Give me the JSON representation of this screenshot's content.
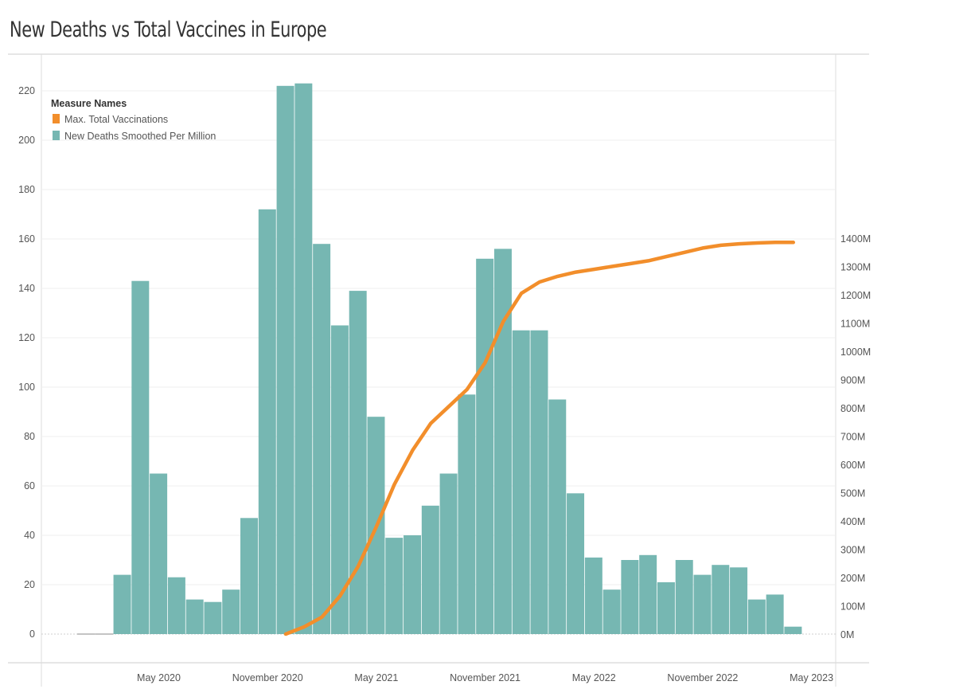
{
  "title": "New Deaths vs Total Vaccines in Europe",
  "chart_data": {
    "type": "bar",
    "legend": {
      "title": "Measure Names",
      "placement": "top-left",
      "entries": [
        {
          "label": "Max. Total Vaccinations",
          "color": "#f28e2b"
        },
        {
          "label": "New Deaths Smoothed Per Million",
          "color": "#76b7b2"
        }
      ]
    },
    "x_ticks": [
      "May 2020",
      "November 2020",
      "May 2021",
      "November 2021",
      "May 2022",
      "November 2022",
      "May 2023"
    ],
    "categories": [
      "2020-01",
      "2020-02",
      "2020-03",
      "2020-04",
      "2020-05",
      "2020-06",
      "2020-07",
      "2020-08",
      "2020-09",
      "2020-10",
      "2020-11",
      "2020-12",
      "2021-01",
      "2021-02",
      "2021-03",
      "2021-04",
      "2021-05",
      "2021-06",
      "2021-07",
      "2021-08",
      "2021-09",
      "2021-10",
      "2021-11",
      "2021-12",
      "2022-01",
      "2022-02",
      "2022-03",
      "2022-04",
      "2022-05",
      "2022-06",
      "2022-07",
      "2022-08",
      "2022-09",
      "2022-10",
      "2022-11",
      "2022-12",
      "2023-01",
      "2023-02",
      "2023-03",
      "2023-04"
    ],
    "series": [
      {
        "name": "New Deaths Smoothed Per Million",
        "axis": "left",
        "type": "bar",
        "color": "#76b7b2",
        "values": [
          0,
          0,
          24,
          143,
          65,
          23,
          14,
          13,
          18,
          47,
          172,
          222,
          223,
          158,
          125,
          139,
          88,
          39,
          40,
          52,
          65,
          97,
          152,
          156,
          123,
          123,
          95,
          57,
          31,
          18,
          30,
          32,
          21,
          30,
          24,
          28,
          27,
          14,
          16,
          3
        ]
      },
      {
        "name": "Max. Total Vaccinations",
        "axis": "right",
        "type": "line",
        "color": "#f28e2b",
        "unit": "M",
        "x": [
          "2020-12",
          "2021-01",
          "2021-02",
          "2021-03",
          "2021-04",
          "2021-05",
          "2021-06",
          "2021-07",
          "2021-08",
          "2021-09",
          "2021-10",
          "2021-11",
          "2021-12",
          "2022-01",
          "2022-02",
          "2022-03",
          "2022-04",
          "2022-05",
          "2022-06",
          "2022-07",
          "2022-08",
          "2022-09",
          "2022-10",
          "2022-11",
          "2022-12",
          "2023-01",
          "2023-02",
          "2023-03",
          "2023-04"
        ],
        "values": [
          0,
          25,
          60,
          135,
          240,
          380,
          530,
          650,
          745,
          805,
          865,
          960,
          1105,
          1205,
          1245,
          1265,
          1280,
          1290,
          1300,
          1310,
          1320,
          1335,
          1350,
          1365,
          1375,
          1380,
          1383,
          1385,
          1385
        ]
      }
    ],
    "y_left": {
      "range": [
        0,
        230
      ],
      "ticks": [
        0,
        20,
        40,
        60,
        80,
        100,
        120,
        140,
        160,
        180,
        200,
        220
      ]
    },
    "y_right": {
      "range": [
        0,
        1410
      ],
      "ticks": [
        "0M",
        "100M",
        "200M",
        "300M",
        "400M",
        "500M",
        "600M",
        "700M",
        "800M",
        "900M",
        "1000M",
        "1100M",
        "1200M",
        "1300M",
        "1400M"
      ]
    },
    "grid": true
  }
}
